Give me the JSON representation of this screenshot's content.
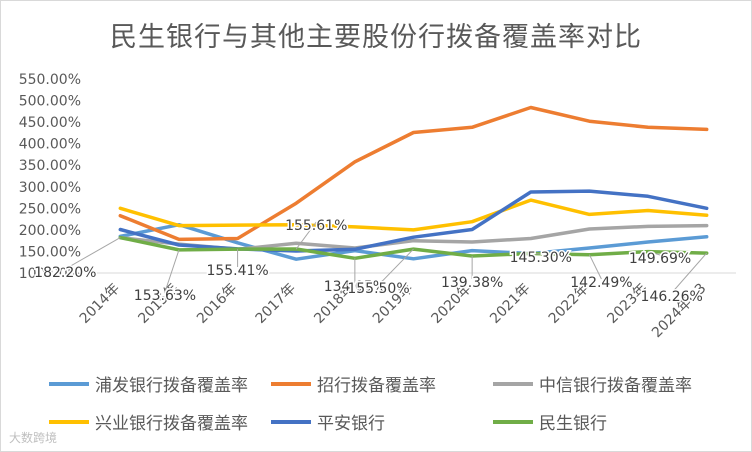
{
  "chart_data": {
    "type": "line",
    "title": "民生银行与其他主要股份行拨备覆盖率对比",
    "categories": [
      "2014年",
      "2015年",
      "2016年",
      "2017年",
      "2018年",
      "2019年",
      "2020年",
      "2021年",
      "2022年",
      "2023年",
      "2024年Q3"
    ],
    "yticks": [
      "550.00%",
      "500.00%",
      "450.00%",
      "400.00%",
      "350.00%",
      "300.00%",
      "250.00%",
      "200.00%",
      "150.00%",
      "100.00%"
    ],
    "ylim": [
      100,
      550
    ],
    "grid": false,
    "legend_position": "bottom",
    "series": [
      {
        "name": "浦发银行拨备覆盖率",
        "color": "#5b9bd5",
        "values": [
          185,
          212,
          170,
          132,
          152,
          133,
          152,
          145,
          158,
          172,
          184
        ]
      },
      {
        "name": "招行拨备覆盖率",
        "color": "#ed7d31",
        "values": [
          233,
          178,
          180,
          262,
          358,
          426,
          438,
          484,
          452,
          438,
          433
        ]
      },
      {
        "name": "中信银行拨备覆盖率",
        "color": "#a5a5a5",
        "values": [
          182,
          167,
          155,
          169,
          158,
          175,
          172,
          180,
          202,
          208,
          210
        ]
      },
      {
        "name": "兴业银行拨备覆盖率",
        "color": "#ffc000",
        "values": [
          250,
          210,
          211,
          212,
          207,
          200,
          219,
          269,
          236,
          245,
          234
        ]
      },
      {
        "name": "平安银行",
        "color": "#4472c4",
        "values": [
          201,
          165,
          156,
          151,
          155,
          183,
          201,
          288,
          290,
          278,
          250
        ]
      },
      {
        "name": "民生银行",
        "color": "#70ad47",
        "values": [
          182.2,
          153.63,
          155.41,
          155.61,
          134.05,
          155.5,
          139.38,
          145.3,
          142.49,
          149.69,
          146.26
        ]
      }
    ],
    "data_labels": [
      "182.20%",
      "153.63%",
      "155.41%",
      "155.61%",
      "134.05%",
      "155.50%",
      "139.38%",
      "145.30%",
      "142.49%",
      "149.69%",
      "146.26%"
    ]
  },
  "watermark": "大数跨境"
}
